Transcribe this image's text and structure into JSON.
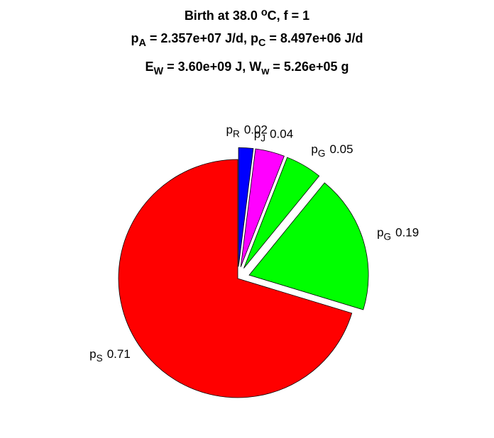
{
  "chart_data": {
    "type": "pie",
    "title": [
      [
        {
          "text": "Birth at 38.0 "
        },
        {
          "text": "o",
          "script": "sup"
        },
        {
          "text": "C, f = 1"
        }
      ],
      [
        {
          "text": "p"
        },
        {
          "text": "A",
          "script": "sub"
        },
        {
          "text": " = 2.357e+07 J/d, p"
        },
        {
          "text": "C",
          "script": "sub"
        },
        {
          "text": " = 8.497e+06 J/d"
        }
      ],
      [
        {
          "text": "E"
        },
        {
          "text": "W",
          "script": "sub"
        },
        {
          "text": " = 3.60e+09 J, W"
        },
        {
          "text": "w",
          "script": "sub"
        },
        {
          "text": " = 5.26e+05 g"
        }
      ]
    ],
    "labels": [
      [
        {
          "text": "p"
        },
        {
          "text": "R",
          "script": "sub"
        }
      ],
      [
        {
          "text": "p"
        },
        {
          "text": "J",
          "script": "sub"
        }
      ],
      [
        {
          "text": "p"
        },
        {
          "text": "G",
          "script": "sub"
        }
      ],
      [
        {
          "text": "p"
        },
        {
          "text": "G",
          "script": "sub"
        }
      ],
      [
        {
          "text": "p"
        },
        {
          "text": "S",
          "script": "sub"
        }
      ]
    ],
    "values": [
      0.02,
      0.04,
      0.05,
      0.19,
      0.71
    ],
    "colors": [
      "#0000ff",
      "#ff00ff",
      "#00ff00",
      "#00ff00",
      "#ff0000"
    ],
    "explode": [
      true,
      true,
      true,
      true,
      false
    ]
  }
}
